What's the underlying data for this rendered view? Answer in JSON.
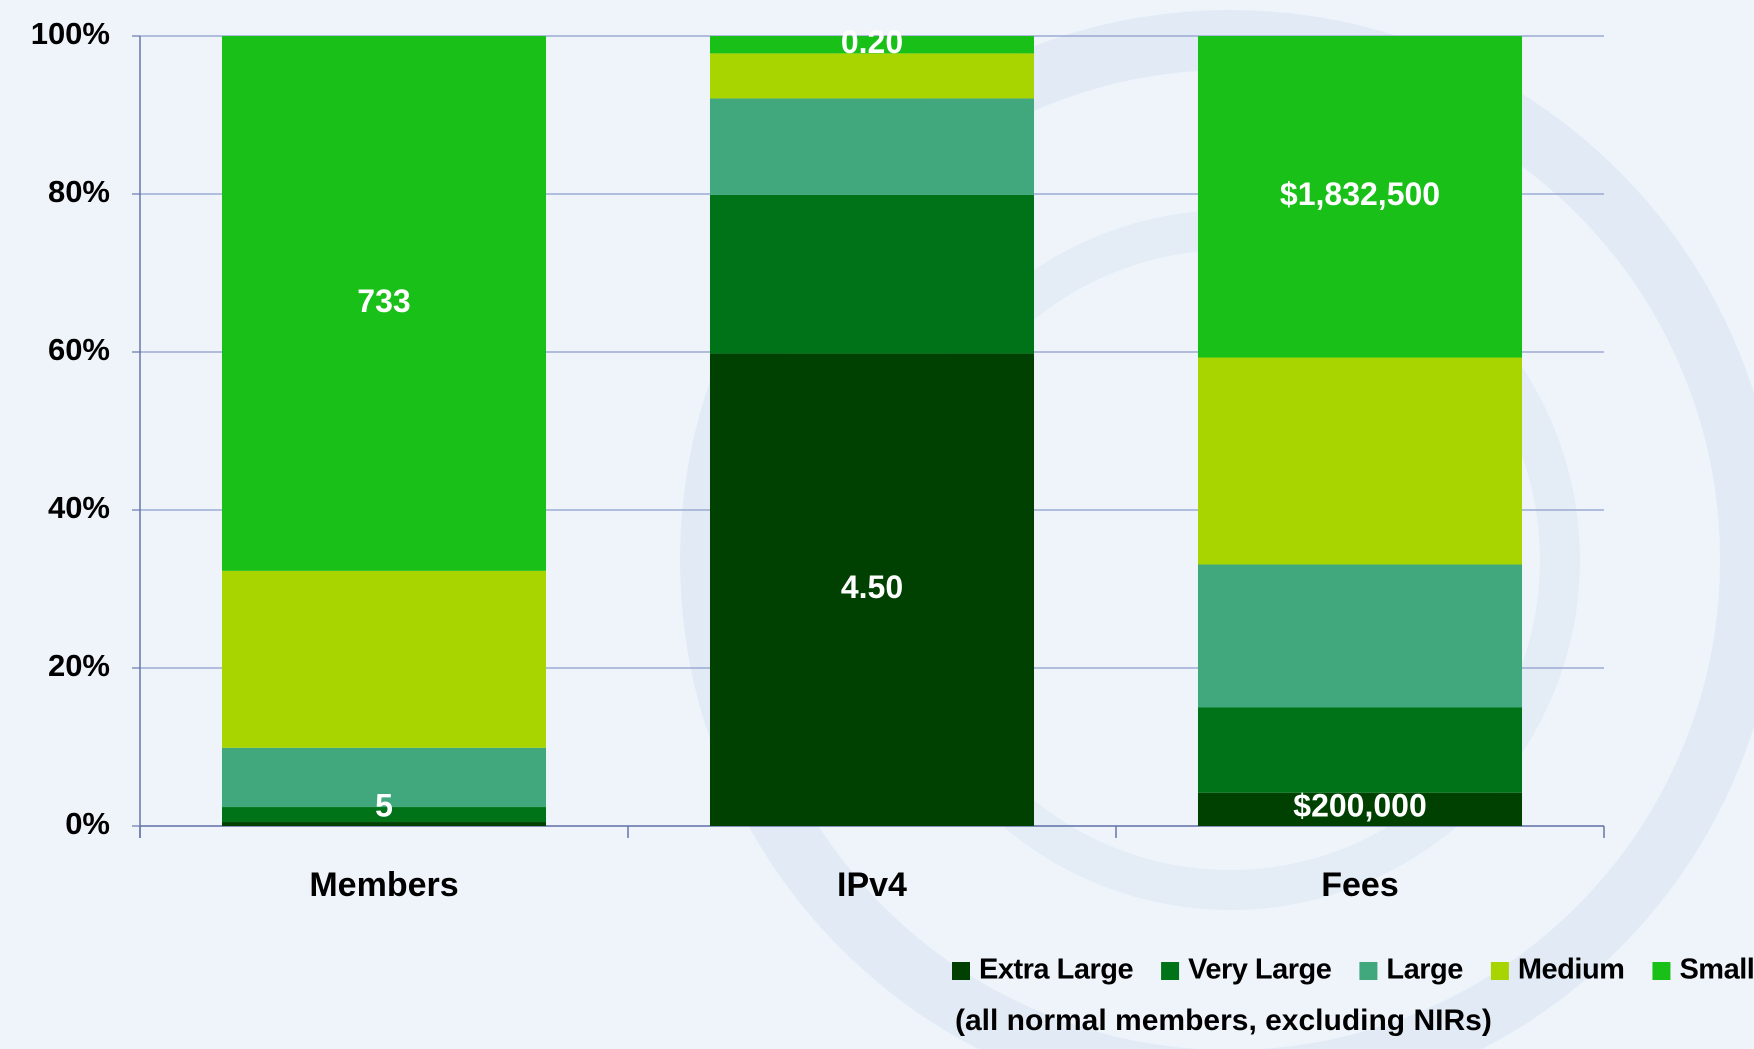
{
  "chart_data": {
    "type": "stacked_bar_100",
    "categories": [
      "Members",
      "IPv4",
      "Fees"
    ],
    "series": [
      {
        "name": "Extra Large",
        "color": "#004000",
        "values": [
          0.5,
          59.8,
          4.2
        ],
        "value_labels": [
          "5",
          "4.50",
          "$200,000"
        ]
      },
      {
        "name": "Very Large",
        "color": "#007318",
        "values": [
          1.9,
          20.1,
          10.8
        ]
      },
      {
        "name": "Large",
        "color": "#40a87c",
        "values": [
          7.5,
          12.2,
          18.1
        ]
      },
      {
        "name": "Medium",
        "color": "#a8d400",
        "values": [
          22.4,
          5.7,
          26.2
        ]
      },
      {
        "name": "Small",
        "color": "#18c018",
        "values": [
          67.7,
          2.2,
          40.7
        ],
        "value_labels": [
          "733",
          "0.20",
          "$1,832,500"
        ]
      }
    ],
    "ylim": [
      0,
      100
    ],
    "yticks": [
      {
        "value": 0,
        "label": "0%"
      },
      {
        "value": 20,
        "label": "20%"
      },
      {
        "value": 40,
        "label": "40%"
      },
      {
        "value": 60,
        "label": "60%"
      },
      {
        "value": 80,
        "label": "80%"
      },
      {
        "value": 100,
        "label": "100%"
      }
    ],
    "grid": true,
    "legend": "bottom-right",
    "note": "(all normal members, excluding NIRs)"
  }
}
